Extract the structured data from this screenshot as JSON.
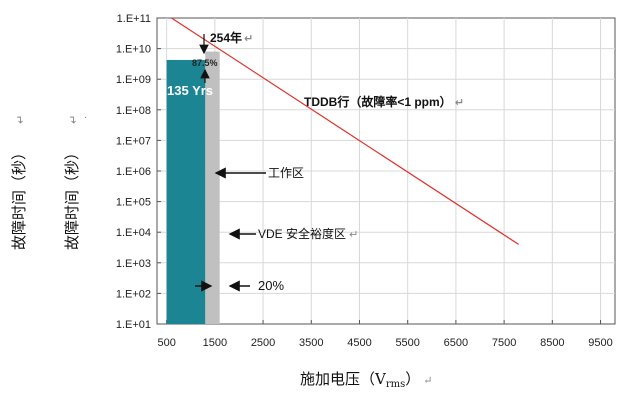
{
  "chart_data": {
    "type": "line",
    "xlabel_main": "施加电压（V",
    "xlabel_sub": "rms",
    "xlabel_end": "）",
    "ylabel": "故障时间（秒）",
    "ylabel_dup": "故障时间（秒）",
    "x_ticks": [
      "500",
      "1500",
      "2500",
      "3500",
      "4500",
      "5500",
      "6500",
      "7500",
      "8500",
      "9500"
    ],
    "x_values": [
      500,
      1500,
      2500,
      3500,
      4500,
      5500,
      6500,
      7500,
      8500,
      9500
    ],
    "xlim": [
      300,
      9800
    ],
    "y_ticks": [
      "1.E+01",
      "1.E+02",
      "1.E+03",
      "1.E+04",
      "1.E+05",
      "1.E+06",
      "1.E+07",
      "1.E+08",
      "1.E+09",
      "1.E+10",
      "1.E+11"
    ],
    "ylim_log10": [
      1,
      11
    ],
    "grid": true,
    "series": [
      {
        "name": "TDDB行（故障率<1 ppm）",
        "color": "#e0302c",
        "x": [
          600,
          7800
        ],
        "y": [
          100000000000.0,
          4000.0
        ]
      }
    ],
    "bars": [
      {
        "label": "135 Yrs",
        "color": "#1b8593",
        "x_range": [
          500,
          1300
        ],
        "y_top": 4260000000.0
      },
      {
        "color": "#c0c0c0",
        "x_range": [
          1300,
          1600
        ],
        "y_top": 8000000000.0
      }
    ],
    "annotations": {
      "yr254": "254年",
      "pct875": "87.5%",
      "work_zone": "工作区",
      "vde_zone": "VDE 安全裕度区",
      "pct20": "20%",
      "tddb": "TDDB行（故障率<1 ppm）"
    },
    "return_mark": "↵"
  }
}
